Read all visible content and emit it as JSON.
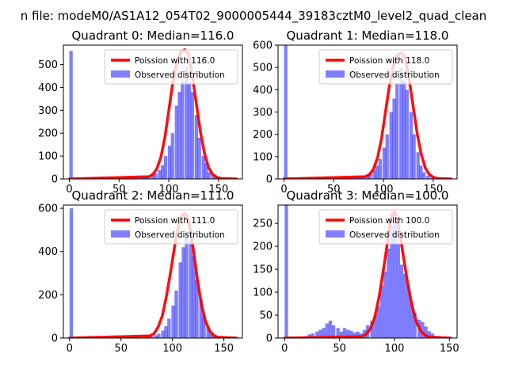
{
  "suptitle": "n file: modeM0/AS1A12_054T02_9000005444_39183cztM0_level2_quad_clean",
  "colors": {
    "hist": "#0000ff",
    "hist_opacity": 0.5,
    "poisson": "#ff0000",
    "axes": "#000000"
  },
  "chart_data": [
    {
      "type": "histogram",
      "title": "Quadrant 0: Median=116.0",
      "xlim": [
        -6,
        174
      ],
      "ylim": [
        0,
        585
      ],
      "xticks": [
        0,
        50,
        100,
        150
      ],
      "yticks": [
        0,
        100,
        200,
        300,
        400,
        500
      ],
      "legend": [
        "Poission with 116.0",
        "Observed distribution"
      ],
      "legend_loc": "upper right",
      "bin_width": 3.4,
      "bins": [
        [
          0,
          560
        ],
        [
          34,
          1
        ],
        [
          44,
          2
        ],
        [
          48,
          3
        ],
        [
          51,
          2
        ],
        [
          58,
          2
        ],
        [
          61,
          3
        ],
        [
          65,
          4
        ],
        [
          68,
          3
        ],
        [
          72,
          5
        ],
        [
          75,
          8
        ],
        [
          78,
          12
        ],
        [
          82,
          18
        ],
        [
          85,
          25
        ],
        [
          89,
          38
        ],
        [
          92,
          60
        ],
        [
          95,
          100
        ],
        [
          99,
          145
        ],
        [
          102,
          200
        ],
        [
          106,
          320
        ],
        [
          109,
          380
        ],
        [
          112,
          430
        ],
        [
          116,
          490
        ],
        [
          119,
          420
        ],
        [
          122,
          380
        ],
        [
          126,
          280
        ],
        [
          129,
          180
        ],
        [
          133,
          100
        ],
        [
          136,
          70
        ],
        [
          139,
          30
        ],
        [
          143,
          20
        ],
        [
          146,
          10
        ],
        [
          150,
          5
        ]
      ],
      "poisson_x": [
        80,
        84,
        88,
        92,
        96,
        100,
        104,
        108,
        112,
        114,
        116,
        118,
        120,
        124,
        128,
        132,
        136,
        140,
        144,
        148,
        152
      ],
      "poisson_y": [
        10,
        20,
        45,
        95,
        180,
        300,
        420,
        510,
        555,
        560,
        565,
        555,
        540,
        440,
        320,
        200,
        110,
        50,
        20,
        8,
        2
      ]
    },
    {
      "type": "histogram",
      "title": "Quadrant 1: Median=118.0",
      "xlim": [
        -6,
        174
      ],
      "ylim": [
        0,
        600
      ],
      "xticks": [
        0,
        50,
        100,
        150
      ],
      "yticks": [
        0,
        100,
        200,
        300,
        400,
        500,
        600
      ],
      "legend": [
        "Poission with 118.0",
        "Observed distribution"
      ],
      "legend_loc": "upper right",
      "bin_width": 3.4,
      "bins": [
        [
          0,
          600
        ],
        [
          40,
          1
        ],
        [
          48,
          2
        ],
        [
          51,
          2
        ],
        [
          58,
          3
        ],
        [
          61,
          2
        ],
        [
          65,
          4
        ],
        [
          68,
          5
        ],
        [
          72,
          6
        ],
        [
          75,
          8
        ],
        [
          78,
          12
        ],
        [
          82,
          20
        ],
        [
          85,
          28
        ],
        [
          89,
          40
        ],
        [
          92,
          60
        ],
        [
          95,
          90
        ],
        [
          99,
          140
        ],
        [
          102,
          200
        ],
        [
          106,
          300
        ],
        [
          109,
          360
        ],
        [
          112,
          430
        ],
        [
          116,
          500
        ],
        [
          119,
          440
        ],
        [
          122,
          400
        ],
        [
          126,
          300
        ],
        [
          129,
          200
        ],
        [
          133,
          120
        ],
        [
          136,
          60
        ],
        [
          139,
          30
        ],
        [
          143,
          15
        ],
        [
          146,
          5
        ]
      ],
      "poisson_x": [
        82,
        86,
        90,
        94,
        98,
        102,
        106,
        110,
        114,
        116,
        118,
        120,
        122,
        126,
        130,
        134,
        138,
        142,
        146,
        150,
        154
      ],
      "poisson_y": [
        10,
        20,
        45,
        95,
        180,
        300,
        420,
        510,
        555,
        560,
        565,
        555,
        540,
        440,
        320,
        200,
        110,
        50,
        20,
        8,
        2
      ]
    },
    {
      "type": "histogram",
      "title": "Quadrant 2: Median=111.0",
      "xlim": [
        -6,
        168
      ],
      "ylim": [
        0,
        615
      ],
      "xticks": [
        0,
        50,
        100,
        150
      ],
      "yticks": [
        0,
        200,
        400,
        600
      ],
      "legend": [
        "Poission with 111.0",
        "Observed distribution"
      ],
      "legend_loc": "upper right",
      "bin_width": 3.4,
      "bins": [
        [
          0,
          600
        ],
        [
          44,
          4
        ],
        [
          51,
          2
        ],
        [
          58,
          3
        ],
        [
          65,
          3
        ],
        [
          72,
          4
        ],
        [
          75,
          5
        ],
        [
          78,
          8
        ],
        [
          82,
          12
        ],
        [
          85,
          20
        ],
        [
          89,
          35
        ],
        [
          92,
          55
        ],
        [
          95,
          90
        ],
        [
          99,
          150
        ],
        [
          102,
          220
        ],
        [
          106,
          350
        ],
        [
          109,
          420
        ],
        [
          112,
          490
        ],
        [
          116,
          450
        ],
        [
          119,
          380
        ],
        [
          122,
          270
        ],
        [
          126,
          180
        ],
        [
          129,
          100
        ],
        [
          133,
          50
        ],
        [
          136,
          20
        ],
        [
          139,
          8
        ]
      ],
      "poisson_x": [
        78,
        82,
        86,
        90,
        94,
        98,
        102,
        106,
        108,
        110,
        112,
        114,
        116,
        120,
        124,
        128,
        132,
        136,
        140,
        144
      ],
      "poisson_y": [
        10,
        20,
        50,
        100,
        190,
        300,
        420,
        520,
        555,
        570,
        575,
        565,
        540,
        420,
        280,
        160,
        80,
        35,
        12,
        4
      ]
    },
    {
      "type": "histogram",
      "title": "Quadrant 3: Median=100.0",
      "xlim": [
        -6,
        157
      ],
      "ylim": [
        0,
        290
      ],
      "xticks": [
        0,
        50,
        100,
        150
      ],
      "yticks": [
        0,
        50,
        100,
        150,
        200,
        250
      ],
      "legend": [
        "Poission with 100.0",
        "Observed distribution"
      ],
      "legend_loc": "upper right",
      "bin_width": 3.1,
      "bins": [
        [
          0,
          290
        ],
        [
          3,
          2
        ],
        [
          6,
          1
        ],
        [
          12,
          2
        ],
        [
          15,
          3
        ],
        [
          18,
          4
        ],
        [
          21,
          8
        ],
        [
          24,
          10
        ],
        [
          28,
          14
        ],
        [
          31,
          18
        ],
        [
          34,
          22
        ],
        [
          37,
          32
        ],
        [
          40,
          38
        ],
        [
          43,
          28
        ],
        [
          47,
          22
        ],
        [
          50,
          14
        ],
        [
          53,
          22
        ],
        [
          56,
          18
        ],
        [
          59,
          16
        ],
        [
          62,
          12
        ],
        [
          65,
          14
        ],
        [
          68,
          10
        ],
        [
          71,
          18
        ],
        [
          74,
          28
        ],
        [
          78,
          38
        ],
        [
          81,
          50
        ],
        [
          84,
          70
        ],
        [
          87,
          115
        ],
        [
          90,
          145
        ],
        [
          93,
          195
        ],
        [
          96,
          245
        ],
        [
          99,
          265
        ],
        [
          102,
          205
        ],
        [
          105,
          160
        ],
        [
          108,
          140
        ],
        [
          111,
          115
        ],
        [
          114,
          78
        ],
        [
          117,
          55
        ],
        [
          121,
          40
        ],
        [
          124,
          35
        ],
        [
          127,
          25
        ],
        [
          130,
          15
        ],
        [
          133,
          10
        ],
        [
          136,
          5
        ],
        [
          140,
          3
        ]
      ],
      "poisson_x": [
        70,
        74,
        78,
        82,
        86,
        90,
        94,
        96,
        98,
        100,
        102,
        104,
        108,
        112,
        116,
        120,
        124,
        128,
        132
      ],
      "poisson_y": [
        3,
        8,
        20,
        45,
        90,
        150,
        215,
        250,
        270,
        275,
        265,
        240,
        180,
        120,
        70,
        35,
        15,
        6,
        2
      ]
    }
  ]
}
